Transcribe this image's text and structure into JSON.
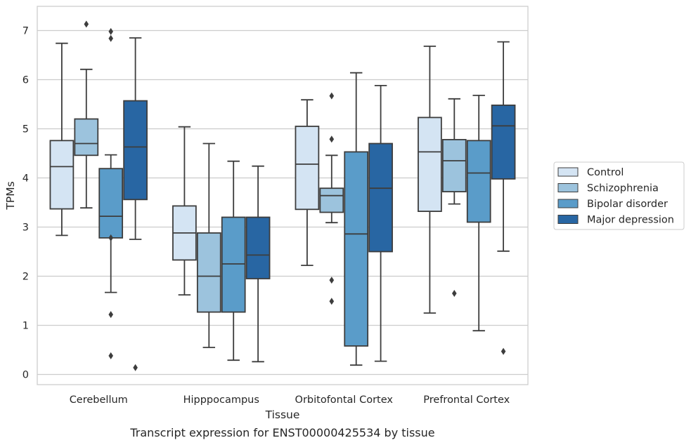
{
  "caption": "Transcript expression for ENST00000425534 by tissue",
  "chart_data": {
    "type": "box",
    "xlabel": "Tissue",
    "ylabel": "TPMs",
    "ylim": [
      -0.2,
      7.5
    ],
    "yticks": [
      0,
      1,
      2,
      3,
      4,
      5,
      6,
      7
    ],
    "grid": "horizontal",
    "legend_position": "right",
    "categories": [
      "Cerebellum",
      "Hipppocampus",
      "Orbitofontal Cortex",
      "Prefrontal Cortex"
    ],
    "series": [
      {
        "name": "Control",
        "color": "#d4e4f3",
        "boxes": [
          {
            "whislo": 2.83,
            "q1": 3.37,
            "med": 4.23,
            "q3": 4.76,
            "whishi": 6.74,
            "fliers": []
          },
          {
            "whislo": 1.62,
            "q1": 2.33,
            "med": 2.88,
            "q3": 3.43,
            "whishi": 5.04,
            "fliers": []
          },
          {
            "whislo": 2.22,
            "q1": 3.36,
            "med": 4.28,
            "q3": 5.05,
            "whishi": 5.59,
            "fliers": []
          },
          {
            "whislo": 1.25,
            "q1": 3.32,
            "med": 4.53,
            "q3": 5.23,
            "whishi": 6.68,
            "fliers": []
          }
        ]
      },
      {
        "name": "Schizophrenia",
        "color": "#9cc3dd",
        "boxes": [
          {
            "whislo": 3.39,
            "q1": 4.46,
            "med": 4.7,
            "q3": 5.2,
            "whishi": 6.21,
            "fliers": [
              7.13
            ]
          },
          {
            "whislo": 0.55,
            "q1": 1.27,
            "med": 2.0,
            "q3": 2.88,
            "whishi": 4.7,
            "fliers": []
          },
          {
            "whislo": 3.09,
            "q1": 3.3,
            "med": 3.64,
            "q3": 3.79,
            "whishi": 4.46,
            "fliers": [
              5.67,
              4.79,
              1.92,
              1.49
            ]
          },
          {
            "whislo": 3.47,
            "q1": 3.72,
            "med": 4.35,
            "q3": 4.78,
            "whishi": 5.61,
            "fliers": [
              1.65
            ]
          }
        ]
      },
      {
        "name": "Bipolar disorder",
        "color": "#5a9cc9",
        "boxes": [
          {
            "whislo": 1.67,
            "q1": 2.78,
            "med": 3.22,
            "q3": 4.19,
            "whishi": 4.47,
            "fliers": [
              6.98,
              6.84,
              2.78,
              1.22,
              0.38
            ]
          },
          {
            "whislo": 0.29,
            "q1": 1.27,
            "med": 2.25,
            "q3": 3.2,
            "whishi": 4.34,
            "fliers": []
          },
          {
            "whislo": 0.19,
            "q1": 0.58,
            "med": 2.86,
            "q3": 4.53,
            "whishi": 6.14,
            "fliers": []
          },
          {
            "whislo": 0.89,
            "q1": 3.1,
            "med": 4.1,
            "q3": 4.76,
            "whishi": 5.68,
            "fliers": []
          }
        ]
      },
      {
        "name": "Major depression",
        "color": "#2866a3",
        "boxes": [
          {
            "whislo": 2.75,
            "q1": 3.56,
            "med": 4.63,
            "q3": 5.57,
            "whishi": 6.85,
            "fliers": [
              0.14
            ]
          },
          {
            "whislo": 0.26,
            "q1": 1.95,
            "med": 2.43,
            "q3": 3.2,
            "whishi": 4.24,
            "fliers": []
          },
          {
            "whislo": 0.27,
            "q1": 2.5,
            "med": 3.79,
            "q3": 4.7,
            "whishi": 5.88,
            "fliers": []
          },
          {
            "whislo": 2.51,
            "q1": 3.98,
            "med": 5.06,
            "q3": 5.48,
            "whishi": 6.77,
            "fliers": [
              0.47
            ]
          }
        ]
      }
    ]
  }
}
